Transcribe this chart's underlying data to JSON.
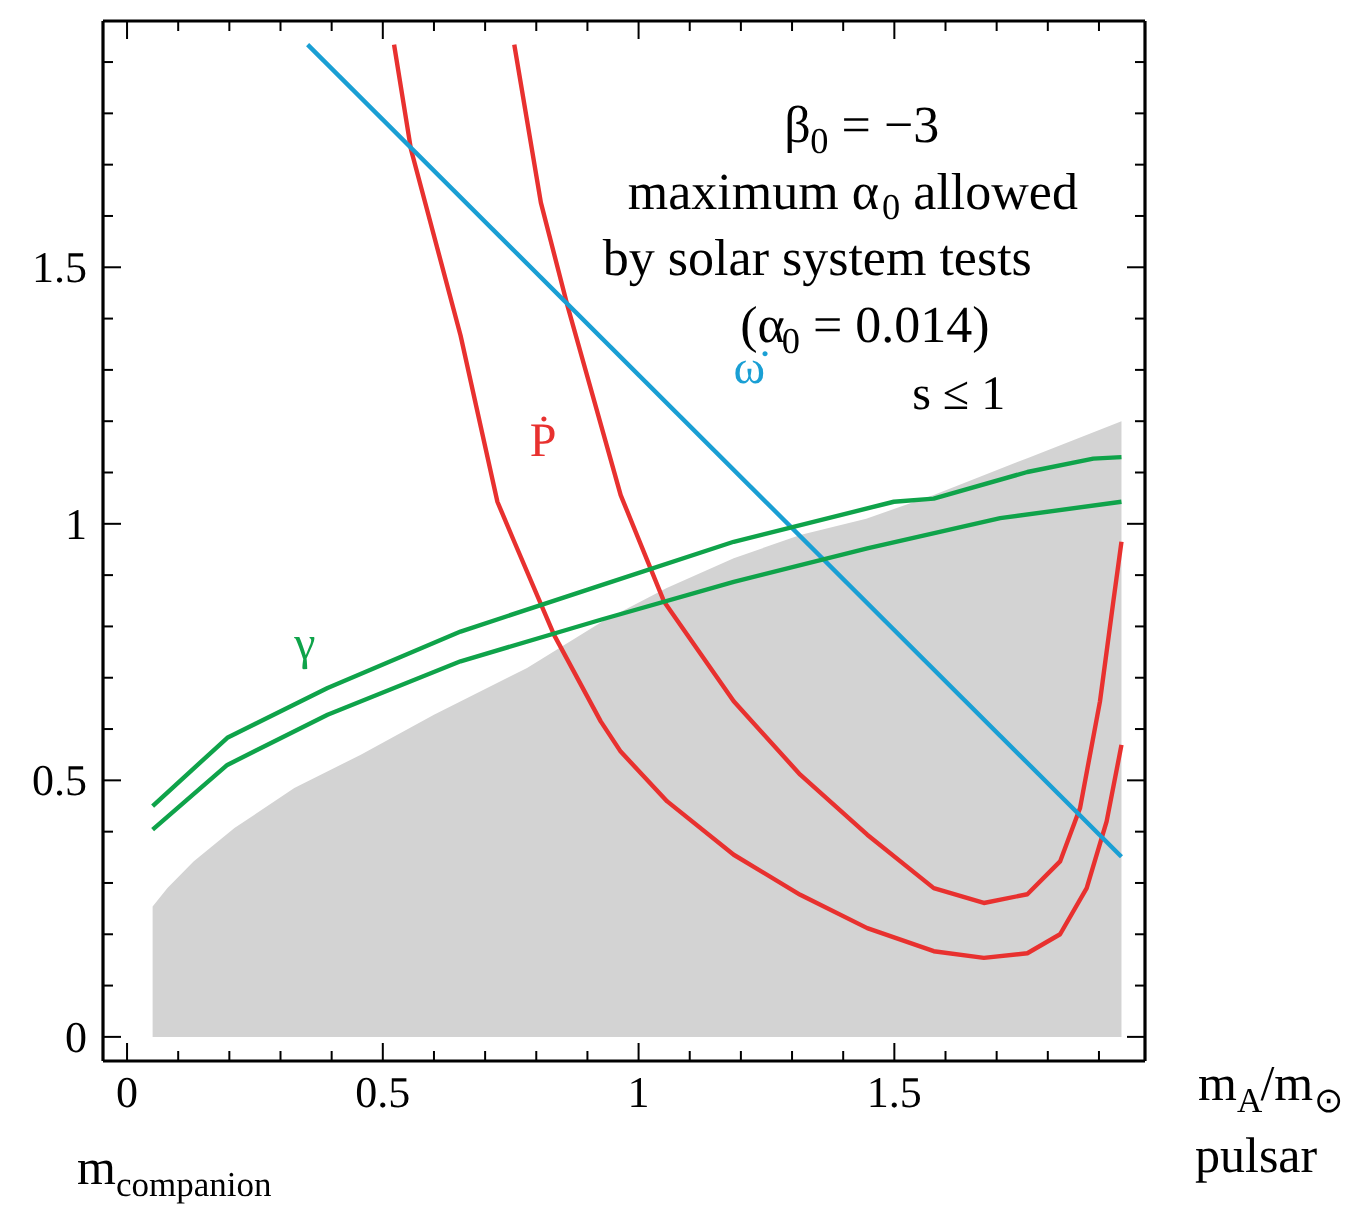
{
  "chart_data": {
    "type": "line",
    "xlabel": "m$_{A}$/m$_{⊙}$\npulsar",
    "xlim": [
      -0.047,
      1.99
    ],
    "ylim": [
      -0.047,
      1.98
    ],
    "xticks": [
      0,
      {
        "value": 0.1,
        "label": null
      },
      {
        "value": 0.2,
        "label": null
      },
      {
        "value": 0.3,
        "label": null
      },
      {
        "value": 0.4,
        "label": null
      },
      0.5,
      {
        "value": 0.6,
        "label": null
      },
      {
        "value": 0.7,
        "label": null
      },
      {
        "value": 0.8,
        "label": null
      },
      {
        "value": 0.9,
        "label": null
      },
      1,
      {
        "value": 1.1,
        "label": null
      },
      {
        "value": 1.2,
        "label": null
      },
      {
        "value": 1.3,
        "label": null
      },
      {
        "value": 1.4,
        "label": null
      },
      1.5,
      {
        "value": 1.6,
        "label": null
      },
      {
        "value": 1.7,
        "label": null
      },
      {
        "value": 1.8,
        "label": null
      },
      {
        "value": 1.9,
        "label": null
      }
    ],
    "yticks": [
      0,
      {
        "value": 0.1,
        "label": null
      },
      {
        "value": 0.2,
        "label": null
      },
      {
        "value": 0.3,
        "label": null
      },
      {
        "value": 0.4,
        "label": null
      },
      0.5,
      {
        "value": 0.6,
        "label": null
      },
      {
        "value": 0.7,
        "label": null
      },
      {
        "value": 0.8,
        "label": null
      },
      {
        "value": 0.9,
        "label": null
      },
      1,
      {
        "value": 1.1,
        "label": null
      },
      {
        "value": 1.2,
        "label": null
      },
      {
        "value": 1.3,
        "label": null
      },
      {
        "value": 1.4,
        "label": null
      },
      1.5,
      {
        "value": 1.6,
        "label": null
      },
      {
        "value": 1.7,
        "label": null
      },
      {
        "value": 1.8,
        "label": null
      },
      {
        "value": 1.9,
        "label": null
      }
    ],
    "grid": false,
    "series": [
      {
        "type": "area",
        "color": "#d3d3d3",
        "x": [
          0.05,
          0.079,
          0.13,
          0.21,
          0.327,
          0.457,
          0.6,
          0.782,
          0.93,
          1.055,
          1.186,
          1.316,
          1.445,
          1.577,
          1.76,
          1.944
        ],
        "values": [
          0.254,
          0.29,
          0.342,
          0.407,
          0.485,
          0.55,
          0.628,
          0.719,
          0.81,
          0.875,
          0.933,
          0.978,
          1.01,
          1.056,
          1.128,
          1.2
        ]
      },
      {
        "name": "Ṗ",
        "color": "#e8312f",
        "x": [
          0.522,
          0.555,
          0.652,
          0.724,
          0.757,
          0.835,
          0.926,
          0.965,
          1.056,
          1.186,
          1.316,
          1.447,
          1.577,
          1.675,
          1.76,
          1.824,
          1.876,
          1.915,
          1.944
        ],
        "values": [
          1.934,
          1.73,
          1.367,
          1.043,
          0.965,
          0.783,
          0.615,
          0.556,
          0.459,
          0.355,
          0.277,
          0.212,
          0.167,
          0.154,
          0.163,
          0.2,
          0.29,
          0.42,
          0.569
        ]
      },
      {
        "color": "#e8312f",
        "x": [
          0.757,
          0.809,
          0.861,
          0.965,
          1.05,
          1.186,
          1.316,
          1.447,
          1.577,
          1.675,
          1.76,
          1.824,
          1.863,
          1.902,
          1.928,
          1.944
        ],
        "values": [
          1.934,
          1.626,
          1.425,
          1.056,
          0.848,
          0.654,
          0.511,
          0.394,
          0.29,
          0.261,
          0.278,
          0.342,
          0.446,
          0.654,
          0.848,
          0.965
        ]
      },
      {
        "name": "ω̇",
        "color": "#1a9fd4",
        "x": [
          0.353,
          1.944
        ],
        "values": [
          1.934,
          0.351
        ]
      },
      {
        "name": "γ",
        "color": "#0fa34a",
        "x": [
          0.05,
          0.196,
          0.392,
          0.652,
          0.926,
          1.186,
          1.499,
          1.577,
          1.76,
          1.889,
          1.944
        ],
        "values": [
          0.45,
          0.583,
          0.68,
          0.79,
          0.88,
          0.965,
          1.043,
          1.049,
          1.101,
          1.127,
          1.13
        ]
      },
      {
        "color": "#0fa34a",
        "x": [
          0.05,
          0.196,
          0.392,
          0.652,
          0.926,
          1.186,
          1.447,
          1.707,
          1.944
        ],
        "values": [
          0.404,
          0.53,
          0.628,
          0.732,
          0.813,
          0.887,
          0.952,
          1.011,
          1.043
        ]
      }
    ],
    "annotations": [
      "β$_{0}$ = −3",
      "maximum α$_{0}$ allowed",
      "by solar system tests",
      "(α$_{0}$ = 0.014)",
      "s ≤ 1",
      "m$_{companion}$"
    ]
  }
}
